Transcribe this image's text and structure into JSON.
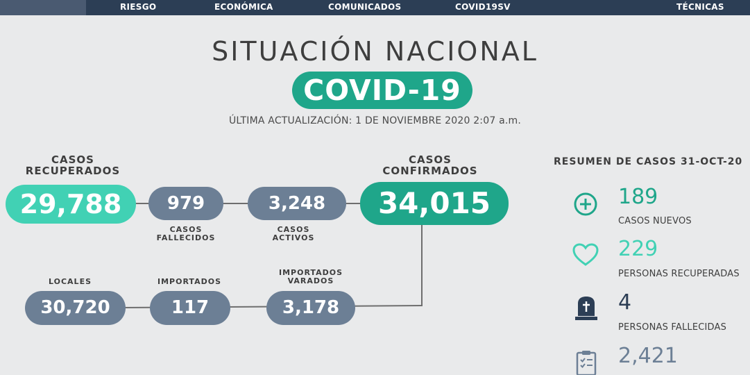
{
  "nav": {
    "items": [
      "RIESGO",
      "ECONÓMICA",
      "COMUNICADOS",
      "COVID19SV",
      "TÉCNICAS"
    ]
  },
  "header": {
    "title": "SITUACIÓN NACIONAL",
    "badge": "COVID-19",
    "updated": "ÚLTIMA ACTUALIZACIÓN: 1 DE NOVIEMBRE 2020 2:07 a.m."
  },
  "stats": {
    "recuperados": {
      "label_line1": "CASOS",
      "label_line2": "RECUPERADOS",
      "value": "29,788"
    },
    "fallecidos": {
      "value": "979",
      "label_line1": "CASOS",
      "label_line2": "FALLECIDOS"
    },
    "activos": {
      "value": "3,248",
      "label_line1": "CASOS",
      "label_line2": "ACTIVOS"
    },
    "confirmados": {
      "label_line1": "CASOS",
      "label_line2": "CONFIRMADOS",
      "value": "34,015"
    },
    "locales": {
      "label": "LOCALES",
      "value": "30,720"
    },
    "importados": {
      "label": "IMPORTADOS",
      "value": "117"
    },
    "varados": {
      "label_line1": "IMPORTADOS",
      "label_line2": "VARADOS",
      "value": "3,178"
    }
  },
  "resumen": {
    "title": "RESUMEN DE CASOS 31-OCT-20",
    "items": [
      {
        "value": "189",
        "label": "CASOS NUEVOS",
        "icon": "plus-circle-icon",
        "color": "#1fa68a"
      },
      {
        "value": "229",
        "label": "PERSONAS RECUPERADAS",
        "icon": "heart-icon",
        "color": "#41d1b4"
      },
      {
        "value": "4",
        "label": "PERSONAS FALLECIDAS",
        "icon": "tombstone-icon",
        "color": "#2c3e55"
      },
      {
        "value": "2,421",
        "label": "",
        "icon": "clipboard-checklist-icon",
        "color": "#6c7f95"
      }
    ]
  },
  "colors": {
    "nav": "#2c3e55",
    "teal": "#1fa68a",
    "mint": "#41d1b4",
    "slate": "#6c7f95",
    "background": "#e9eaeb"
  }
}
